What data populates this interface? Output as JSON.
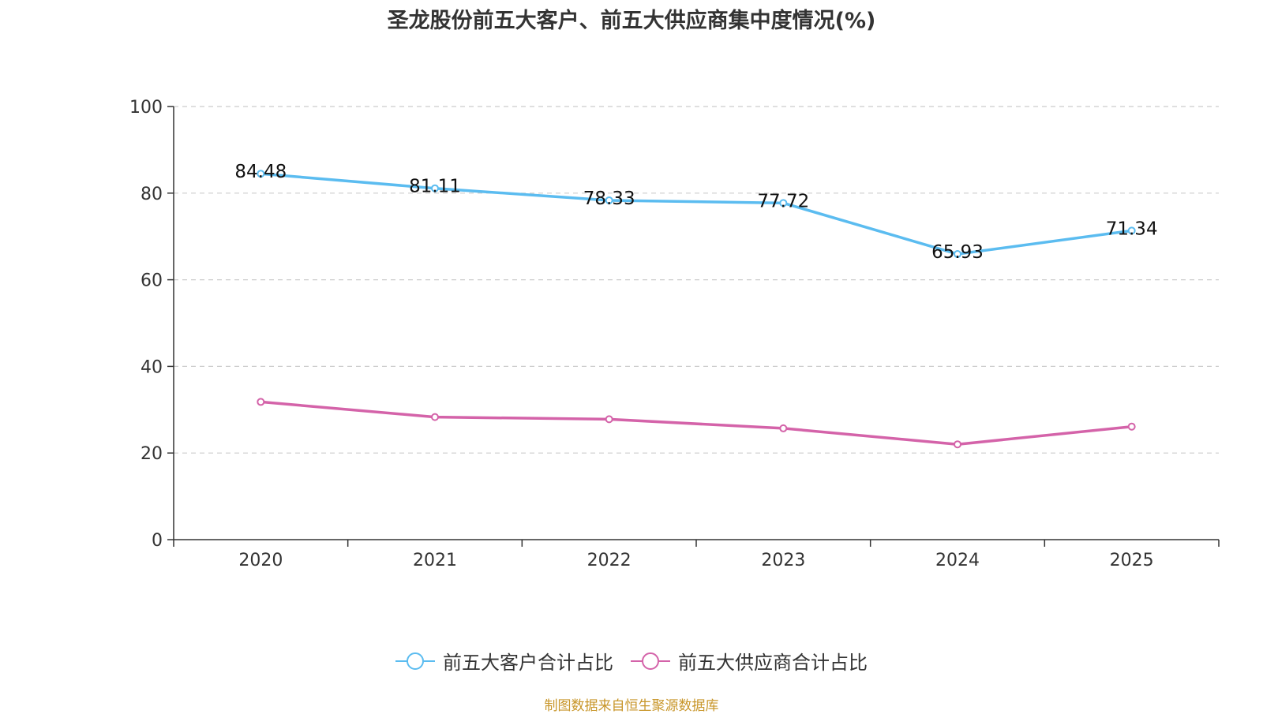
{
  "chart_data": {
    "type": "line",
    "title": "圣龙股份前五大客户、前五大供应商集中度情况(%)",
    "categories": [
      "2020",
      "2021",
      "2022",
      "2023",
      "2024",
      "2025"
    ],
    "ylim": [
      0,
      100
    ],
    "yticks": [
      0,
      20,
      40,
      60,
      80,
      100
    ],
    "grid": true,
    "legend_position": "bottom",
    "series": [
      {
        "name": "前五大客户合计占比",
        "color": "#5bbcf0",
        "values": [
          84.48,
          81.11,
          78.33,
          77.72,
          65.93,
          71.34
        ],
        "labels": [
          "84.48",
          "81.11",
          "78.33",
          "77.72",
          "65.93",
          "71.34"
        ]
      },
      {
        "name": "前五大供应商合计占比",
        "color": "#d463a9",
        "values": [
          31.8,
          28.3,
          27.8,
          25.7,
          22.0,
          26.1
        ]
      }
    ],
    "source": "制图数据来自恒生聚源数据库",
    "source_color": "#c8962a"
  }
}
